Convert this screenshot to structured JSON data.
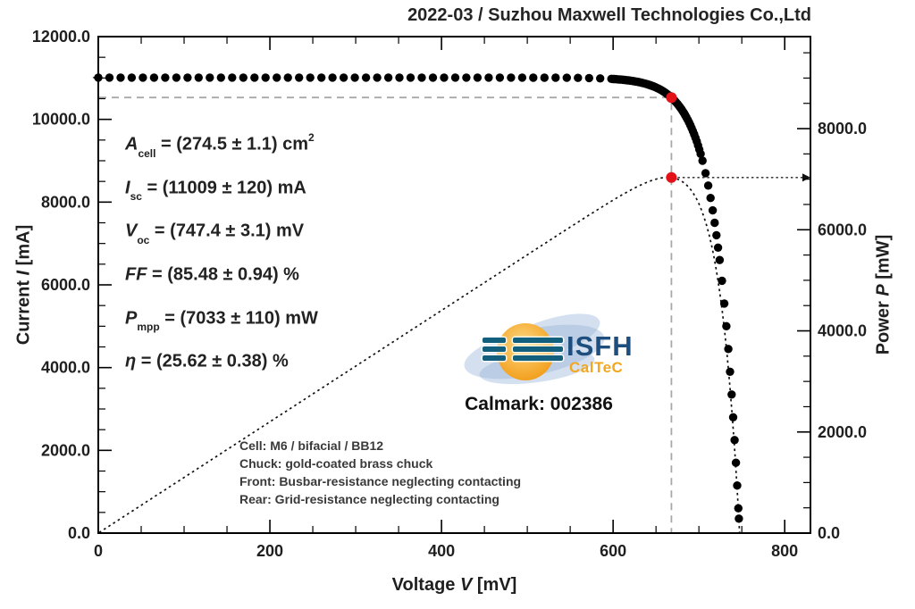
{
  "title": "2022-03 / Suzhou Maxwell Technologies Co.,Ltd",
  "calmark": "Calmark: 002386",
  "logo": {
    "name": "ISFH",
    "subname": "CalTeC"
  },
  "annotation_lines": [
    {
      "var": "A",
      "sub": "cell",
      "rest": " = (274.5 ± 1.1) cm",
      "sup": "2"
    },
    {
      "var": "I",
      "sub": "sc",
      "rest": " = (11009 ± 120) mA",
      "sup": ""
    },
    {
      "var": "V",
      "sub": "oc",
      "rest": " = (747.4 ± 3.1) mV",
      "sup": ""
    },
    {
      "var": "FF",
      "sub": "",
      "rest": " = (85.48 ± 0.94) %",
      "sup": ""
    },
    {
      "var": "P",
      "sub": "mpp",
      "rest": " = (7033 ± 110) mW",
      "sup": ""
    },
    {
      "var": "η",
      "sub": "",
      "rest": " = (25.62 ± 0.38) %",
      "sup": ""
    }
  ],
  "cell_info": [
    "Cell: M6 / bifacial / BB12",
    "Chuck: gold-coated brass chuck",
    "Front: Busbar-resistance neglecting contacting",
    "Rear: Grid-resistance neglecting contacting"
  ],
  "axis_labels": {
    "x": {
      "prefix": "Voltage ",
      "var": "V",
      "suffix": " [mV]"
    },
    "y_left": {
      "prefix": "Current ",
      "var": "I",
      "suffix": " [mA]"
    },
    "y_right": {
      "prefix": "Power ",
      "var": "P",
      "suffix": " [mW]"
    }
  },
  "chart_data": {
    "type": "scatter",
    "title": "2022-03 / Suzhou Maxwell Technologies Co.,Ltd",
    "grid": false,
    "x_axis": {
      "label": "Voltage V [mV]",
      "range": [
        0,
        830
      ],
      "major_ticks": [
        0,
        200,
        400,
        600,
        800
      ],
      "minor_step": 50,
      "decimals": 0
    },
    "y_left_axis": {
      "label": "Current I [mA]",
      "range": [
        0,
        12000
      ],
      "major_ticks": [
        0,
        2000,
        4000,
        6000,
        8000,
        10000,
        12000
      ],
      "minor_step": 500,
      "decimals": 1
    },
    "y_right_axis": {
      "label": "Power P [mW]",
      "range": [
        0,
        9820
      ],
      "major_ticks": [
        0,
        2000,
        4000,
        6000,
        8000
      ],
      "minor_step": 500,
      "decimals": 1
    },
    "iv_curve": {
      "description": "measured I-V points, one-diode shape I(V)=Isc*(1-exp((V-Voc)/Vt))",
      "isc_mA": 11009,
      "voc_mV": 747.4,
      "thermal_voltage_mV": 25.4,
      "marker": "filled-circle",
      "marker_radius_px": 4.7,
      "color": "#000000",
      "sampling": {
        "flat_mV": {
          "start": 0,
          "end": 598,
          "step": 13
        },
        "knee_mV": {
          "start": 600,
          "end": 703,
          "step": 1.5
        },
        "tail_mA": [
          9000,
          8700,
          8400,
          8100,
          7800,
          7500,
          7200,
          6900,
          6600,
          6100,
          5550,
          5000,
          4450,
          3900,
          3350,
          2800,
          2250,
          1700,
          1150,
          600,
          350
        ]
      }
    },
    "power_curve": {
      "formula": "P_mW = I(V)*V/1000",
      "style": "dotted",
      "color": "#111111"
    },
    "mpp": {
      "v_mV": 668,
      "i_mA": 10527,
      "p_mW": 7033,
      "marker_color": "#e31219"
    },
    "isc_axis_arrow_mA": 11009,
    "pmpp_axis_arrow_mW": 7033,
    "crosshair_color": "#a8a8a8"
  }
}
